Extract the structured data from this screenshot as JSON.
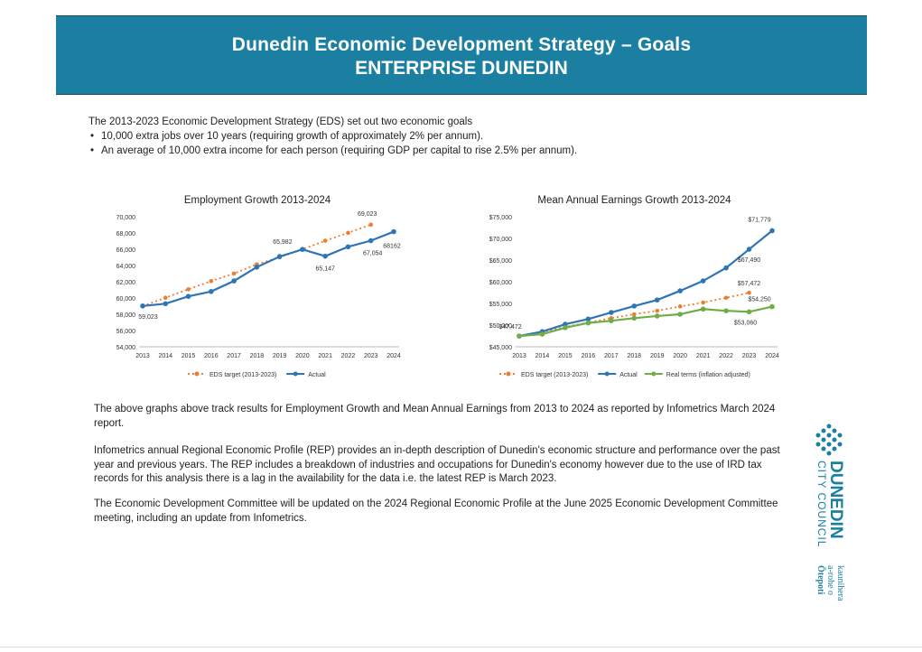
{
  "header": {
    "title": "Dunedin Economic Development Strategy – Goals",
    "subtitle": "ENTERPRISE DUNEDIN"
  },
  "intro": {
    "lead": "The 2013-2023 Economic Development Strategy (EDS) set out two economic goals",
    "bullets": [
      "10,000 extra jobs over 10 years (requiring growth of approximately 2% per annum).",
      "An average of 10,000 extra income for each person (requiring GDP per capital to rise 2.5% per annum)."
    ]
  },
  "chart_data": [
    {
      "type": "line",
      "title": "Employment Growth 2013-2024",
      "x": [
        "2013",
        "2014",
        "2015",
        "2016",
        "2017",
        "2018",
        "2019",
        "2020",
        "2021",
        "2022",
        "2023",
        "2024"
      ],
      "ylim": [
        54000,
        70000
      ],
      "yticks": [
        "54,000",
        "56,000",
        "58,000",
        "60,000",
        "62,000",
        "64,000",
        "66,000",
        "68,000",
        "70,000"
      ],
      "series": [
        {
          "name": "EDS target (2013-2023)",
          "color": "#ed7d31",
          "dashed": true,
          "values": [
            59023,
            60030,
            61070,
            62080,
            63010,
            64150,
            65010,
            65982,
            67050,
            68020,
            69023,
            null
          ]
        },
        {
          "name": "Actual",
          "color": "#2e75b6",
          "dashed": false,
          "values": [
            59023,
            59300,
            60200,
            60800,
            62100,
            63800,
            65100,
            65982,
            65147,
            66300,
            67054,
            68162
          ]
        }
      ],
      "labels": [
        "59,023",
        "65,982",
        "69,023",
        "65,147",
        "67,054",
        "68162"
      ]
    },
    {
      "type": "line",
      "title": "Mean Annual Earnings Growth 2013-2024",
      "x": [
        "2013",
        "2014",
        "2015",
        "2016",
        "2017",
        "2018",
        "2019",
        "2020",
        "2021",
        "2022",
        "2023",
        "2024"
      ],
      "ylim": [
        45000,
        75000
      ],
      "yticks": [
        "$45,000",
        "$50,000",
        "$55,000",
        "$60,000",
        "$65,000",
        "$70,000",
        "$75,000"
      ],
      "series": [
        {
          "name": "EDS target (2013-2023)",
          "color": "#ed7d31",
          "dashed": true,
          "values": [
            47472,
            48300,
            49600,
            50600,
            51600,
            52500,
            53300,
            54300,
            55200,
            56300,
            57472,
            null
          ]
        },
        {
          "name": "Actual",
          "color": "#2e75b6",
          "dashed": false,
          "values": [
            47472,
            48500,
            50200,
            51400,
            52900,
            54400,
            55800,
            57900,
            60200,
            63200,
            67490,
            71779
          ]
        },
        {
          "name": "Real terms (inflation adjusted)",
          "color": "#70ad47",
          "dashed": false,
          "values": [
            47472,
            47900,
            49400,
            50500,
            51000,
            51600,
            52100,
            52500,
            53700,
            53300,
            53060,
            54250
          ]
        }
      ],
      "labels": [
        "$47,472",
        "$71,779",
        "$67,490",
        "$57,472",
        "$54,250",
        "$53,060"
      ]
    }
  ],
  "paragraphs": [
    "The above graphs above track results for Employment Growth and Mean Annual Earnings from 2013 to 2024 as reported by Infometrics March 2024 report.",
    "Infometrics annual Regional Economic Profile (REP) provides an in-depth description of Dunedin's economic structure and performance over the past year and previous years. The REP includes a breakdown of industries and occupations for Dunedin's economy however due to the use of IRD tax records for this analysis there is a lag in the availability for the data i.e. the latest REP is March 2023.",
    "The Economic Development Committee will be updated on the 2024 Regional Economic Profile at the June 2025 Economic Development Committee meeting, including an update from Infometrics."
  ],
  "logo": {
    "name": "DUNEDIN",
    "sub": "CITY COUNCIL",
    "maori1": "kaunihera",
    "maori2": "a-rohe o",
    "maori3": "Ōtepoti"
  }
}
